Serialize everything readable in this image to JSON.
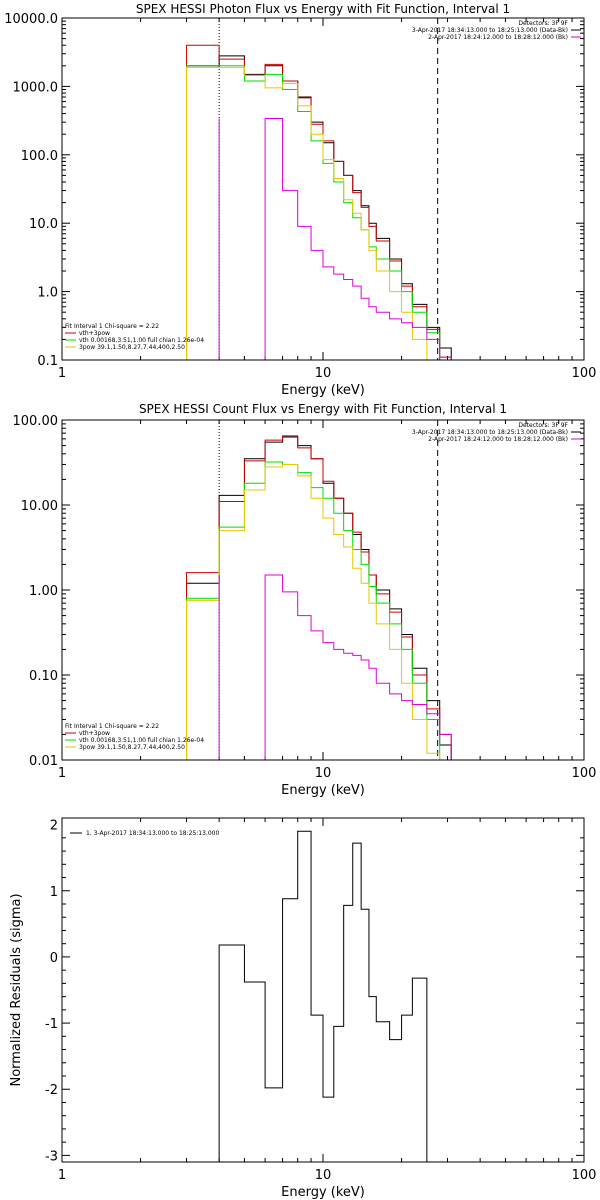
{
  "colors": {
    "black": "#000000",
    "red": "#cc0000",
    "green": "#00dd00",
    "yellow": "#e6c800",
    "magenta": "#dd00dd"
  },
  "chart_data": [
    {
      "type": "line",
      "title": "SPEX HESSI Photon Flux vs Energy with Fit Function, Interval 1",
      "xlabel": "Energy (keV)",
      "ylabel": "",
      "xscale": "log",
      "yscale": "log",
      "xlim": [
        1,
        100
      ],
      "ylim": [
        0.1,
        10000
      ],
      "xticks": [
        "1",
        "10",
        "100"
      ],
      "yticks": [
        "0.1",
        "1.0",
        "10.0",
        "100.0",
        "1000.0",
        "10000.0"
      ],
      "vlines": {
        "dotted": 4.0,
        "dashed": 27.5
      },
      "legend_top": [
        {
          "text": "Detectors: 3F 9F",
          "color": "black"
        },
        {
          "text": "3-Apr-2017 18:34:13.000 to 18:25:13.000 (Data-Bk)",
          "color": "black"
        },
        {
          "text": "2-Apr-2017 18:24:12.000 to 18:28:12.000 (Bk)",
          "color": "magenta"
        }
      ],
      "legend_bottom": [
        {
          "text": "Fit Interval 1   Chi-square = 2.22",
          "color": "black"
        },
        {
          "text": "vth+3pow",
          "color": "red"
        },
        {
          "text": "vth 0.00168,3.51,1.00  full chian 1.26e-04",
          "color": "green"
        },
        {
          "text": "3pow 39.1,1.50,8.27,7.44,400,2.50",
          "color": "yellow"
        }
      ],
      "x_edges": [
        3,
        4,
        5,
        6,
        7,
        8,
        9,
        10,
        11,
        12,
        13,
        14,
        15,
        16,
        18,
        20,
        22,
        25,
        28,
        31
      ],
      "series": [
        {
          "name": "Data-Bk",
          "color": "black",
          "values": [
            2000,
            2800,
            1500,
            2000,
            1200,
            700,
            300,
            150,
            80,
            50,
            30,
            18,
            10,
            6,
            3,
            1.3,
            0.65,
            0.3,
            0.15
          ]
        },
        {
          "name": "vth+3pow",
          "color": "red",
          "values": [
            4000,
            2500,
            1450,
            2100,
            1200,
            680,
            280,
            160,
            80,
            50,
            28,
            17,
            9,
            5.5,
            2.8,
            1.2,
            0.6,
            0.28,
            0.11
          ]
        },
        {
          "name": "vth",
          "color": "green",
          "values": [
            2000,
            2000,
            1200,
            1500,
            900,
            430,
            160,
            75,
            40,
            20,
            12,
            8,
            4.5,
            3,
            2,
            1,
            0.5,
            0.25,
            0.1
          ]
        },
        {
          "name": "3pow",
          "color": "yellow",
          "values": [
            1900,
            1900,
            1450,
            950,
            1100,
            520,
            200,
            85,
            45,
            22,
            14,
            8,
            4,
            2,
            1,
            0.5,
            0.2,
            0.1,
            0.1
          ]
        },
        {
          "name": "Bk",
          "color": "magenta",
          "start": 3,
          "values": [
            340,
            30,
            9,
            4,
            2.3,
            1.8,
            1.5,
            1.2,
            0.8,
            0.6,
            0.5,
            0.4,
            0.35,
            0.3,
            0.2,
            0.1
          ]
        }
      ]
    },
    {
      "type": "line",
      "title": "SPEX HESSI Count Flux vs Energy with Fit Function, Interval 1",
      "xlabel": "Energy (keV)",
      "ylabel": "",
      "xscale": "log",
      "yscale": "log",
      "xlim": [
        1,
        100
      ],
      "ylim": [
        0.01,
        100
      ],
      "xticks": [
        "1",
        "10",
        "100"
      ],
      "yticks": [
        "0.01",
        "0.10",
        "1.00",
        "10.00",
        "100.00"
      ],
      "vlines": {
        "dotted": 4.0,
        "dashed": 27.5
      },
      "legend_top": [
        {
          "text": "Detectors: 3F 9F",
          "color": "black"
        },
        {
          "text": "3-Apr-2017 18:34:13.000 to 18:25:13.000 (Data-Bk)",
          "color": "black"
        },
        {
          "text": "2-Apr-2017 18:24:12.000 to 18:28:12.000 (Bk)",
          "color": "magenta"
        }
      ],
      "legend_bottom": [
        {
          "text": "Fit Interval 1   Chi-square = 2.22",
          "color": "black"
        },
        {
          "text": "vth+3pow",
          "color": "red"
        },
        {
          "text": "vth 0.00168,3.51,1.00  full chian 1.26e-04",
          "color": "green"
        },
        {
          "text": "3pow 39.1,1.50,8.27,7.44,400,2.50",
          "color": "yellow"
        }
      ],
      "x_edges": [
        3,
        4,
        5,
        6,
        7,
        8,
        9,
        10,
        11,
        12,
        13,
        14,
        15,
        16,
        18,
        20,
        22,
        25,
        28,
        31
      ],
      "series": [
        {
          "name": "Data-Bk",
          "color": "black",
          "values": [
            1.2,
            13,
            35,
            55,
            63,
            50,
            35,
            18,
            12,
            8,
            4.5,
            3,
            1.5,
            1,
            0.6,
            0.3,
            0.12,
            0.05,
            0.015
          ]
        },
        {
          "name": "vth+3pow",
          "color": "red",
          "values": [
            1.6,
            11,
            33,
            58,
            65,
            47,
            35,
            19,
            12,
            8,
            4.8,
            2.8,
            1.5,
            0.9,
            0.55,
            0.28,
            0.1,
            0.04,
            0.02
          ]
        },
        {
          "name": "vth",
          "color": "green",
          "values": [
            0.8,
            5.5,
            18,
            32,
            30,
            24,
            16,
            12,
            8,
            5,
            3,
            2,
            1.1,
            0.7,
            0.4,
            0.2,
            0.08,
            0.03,
            0.01
          ]
        },
        {
          "name": "3pow",
          "color": "yellow",
          "values": [
            0.75,
            5,
            15,
            28,
            30,
            22,
            12,
            7,
            4.5,
            3.2,
            1.8,
            1.2,
            0.7,
            0.4,
            0.2,
            0.08,
            0.03,
            0.012,
            0.01
          ]
        },
        {
          "name": "Bk",
          "color": "magenta",
          "start": 3,
          "values": [
            1.5,
            0.95,
            0.5,
            0.33,
            0.24,
            0.2,
            0.18,
            0.17,
            0.15,
            0.12,
            0.08,
            0.06,
            0.05,
            0.045,
            0.035,
            0.02
          ]
        }
      ]
    },
    {
      "type": "line",
      "title": "",
      "xlabel": "Energy (keV)",
      "ylabel": "Normalized Residuals (sigma)",
      "xscale": "log",
      "xlim": [
        1,
        100
      ],
      "ylim": [
        -3.1,
        2.1
      ],
      "xticks": [
        "1",
        "10",
        "100"
      ],
      "yticks": [
        "-3",
        "-2",
        "-1",
        "0",
        "1",
        "2"
      ],
      "legend": "1.  3-Apr-2017 18:34:13.000 to 18:25:13.000",
      "x_edges": [
        4,
        5,
        6,
        7,
        8,
        9,
        10,
        11,
        12,
        13,
        14,
        15,
        16,
        18,
        20,
        22,
        25,
        28
      ],
      "series": [
        {
          "name": "Residuals",
          "color": "black",
          "values": [
            0.18,
            -0.38,
            -1.98,
            0.88,
            1.9,
            -0.88,
            -2.12,
            -1.05,
            0.78,
            1.72,
            0.72,
            -0.6,
            -0.98,
            -1.25,
            -0.88,
            -0.32,
            -3.1
          ]
        }
      ]
    }
  ]
}
